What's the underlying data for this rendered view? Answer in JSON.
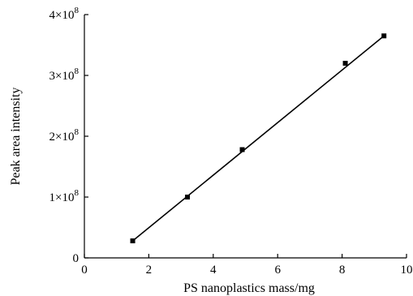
{
  "chart_data": {
    "type": "scatter",
    "title": "",
    "xlabel": "PS nanoplastics mass/mg",
    "ylabel": "Peak area intensity",
    "xlim": [
      0,
      10
    ],
    "ylim": [
      0,
      400000000
    ],
    "x_ticks": [
      0,
      2,
      4,
      6,
      8,
      10
    ],
    "x_tick_labels": [
      "0",
      "2",
      "4",
      "6",
      "8",
      "10"
    ],
    "y_ticks": [
      0,
      100000000,
      200000000,
      300000000,
      400000000
    ],
    "y_tick_labels": [
      {
        "mantissa": "0",
        "exp": ""
      },
      {
        "mantissa": "1×10",
        "exp": "8"
      },
      {
        "mantissa": "2×10",
        "exp": "8"
      },
      {
        "mantissa": "3×10",
        "exp": "8"
      },
      {
        "mantissa": "4×10",
        "exp": "8"
      }
    ],
    "series": [
      {
        "x": [
          1.5,
          3.2,
          4.9,
          8.1,
          9.3
        ],
        "y": [
          28000000,
          100000000,
          178000000,
          320000000,
          365000000
        ],
        "marker": "square"
      }
    ],
    "fit_line": {
      "x": [
        1.5,
        9.3
      ],
      "y": [
        28000000,
        365000000
      ]
    },
    "grid": false,
    "legend": "none"
  }
}
